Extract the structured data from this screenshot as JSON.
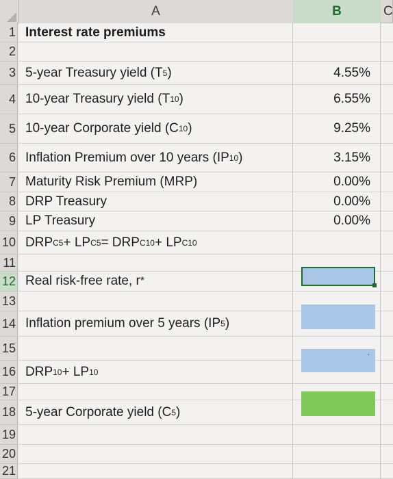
{
  "columns": [
    "A",
    "B",
    "C"
  ],
  "rows": [
    {
      "num": "1",
      "a": "Interest rate premiums",
      "bold": true,
      "b": ""
    },
    {
      "num": "2",
      "a": "",
      "b": ""
    },
    {
      "num": "3",
      "a_main": "5-year Treasury yield (T",
      "a_sub": "5",
      "a_tail": ")",
      "b": "4.55%"
    },
    {
      "num": "4",
      "a_main": "10-year Treasury yield (T",
      "a_sub": "10",
      "a_tail": ")",
      "b": "6.55%"
    },
    {
      "num": "5",
      "a_main": "10-year Corporate yield (C",
      "a_sub": "10",
      "a_tail": ")",
      "b": "9.25%"
    },
    {
      "num": "6",
      "a_main": "Inflation Premium over 10 years (IP",
      "a_sub": "10",
      "a_tail": ")",
      "b": "3.15%"
    },
    {
      "num": "7",
      "a": "Maturity Risk Premium (MRP)",
      "b": "0.00%"
    },
    {
      "num": "8",
      "a": "DRP Treasury",
      "b": "0.00%"
    },
    {
      "num": "9",
      "a": "LP Treasury",
      "b": "0.00%"
    },
    {
      "num": "10",
      "formula": {
        "p1": "DRP",
        "s1": "C5",
        "p2": " + LP",
        "s2": "C5",
        "p3": " = DRP",
        "s3": "C10",
        "p4": " + LP",
        "s4": "C10"
      },
      "b": ""
    },
    {
      "num": "11",
      "a": "",
      "b": ""
    },
    {
      "num": "12",
      "a_main": "Real risk-free rate, r",
      "a_sup": "*",
      "b": ""
    },
    {
      "num": "13",
      "a": "",
      "b": ""
    },
    {
      "num": "14",
      "a_main": "Inflation premium over 5 years (IP",
      "a_sub": "5",
      "a_tail": ")",
      "b": ""
    },
    {
      "num": "15",
      "a": "",
      "b": ""
    },
    {
      "num": "16",
      "a_main": "DRP",
      "a_sub": "10",
      "a_tail": " + LP",
      "a_sub2": "10",
      "b": ""
    },
    {
      "num": "17",
      "a": "",
      "b": ""
    },
    {
      "num": "18",
      "a_main": "5-year Corporate yield (C",
      "a_sub": "5",
      "a_tail": ")",
      "b": ""
    },
    {
      "num": "19",
      "a": "",
      "b": ""
    },
    {
      "num": "20",
      "a": "",
      "b": ""
    },
    {
      "num": "21",
      "a": "",
      "b": ""
    }
  ],
  "fills": {
    "blue": "#a9c6e6",
    "green": "#7fc85a"
  },
  "stray_mark": "ʻ"
}
